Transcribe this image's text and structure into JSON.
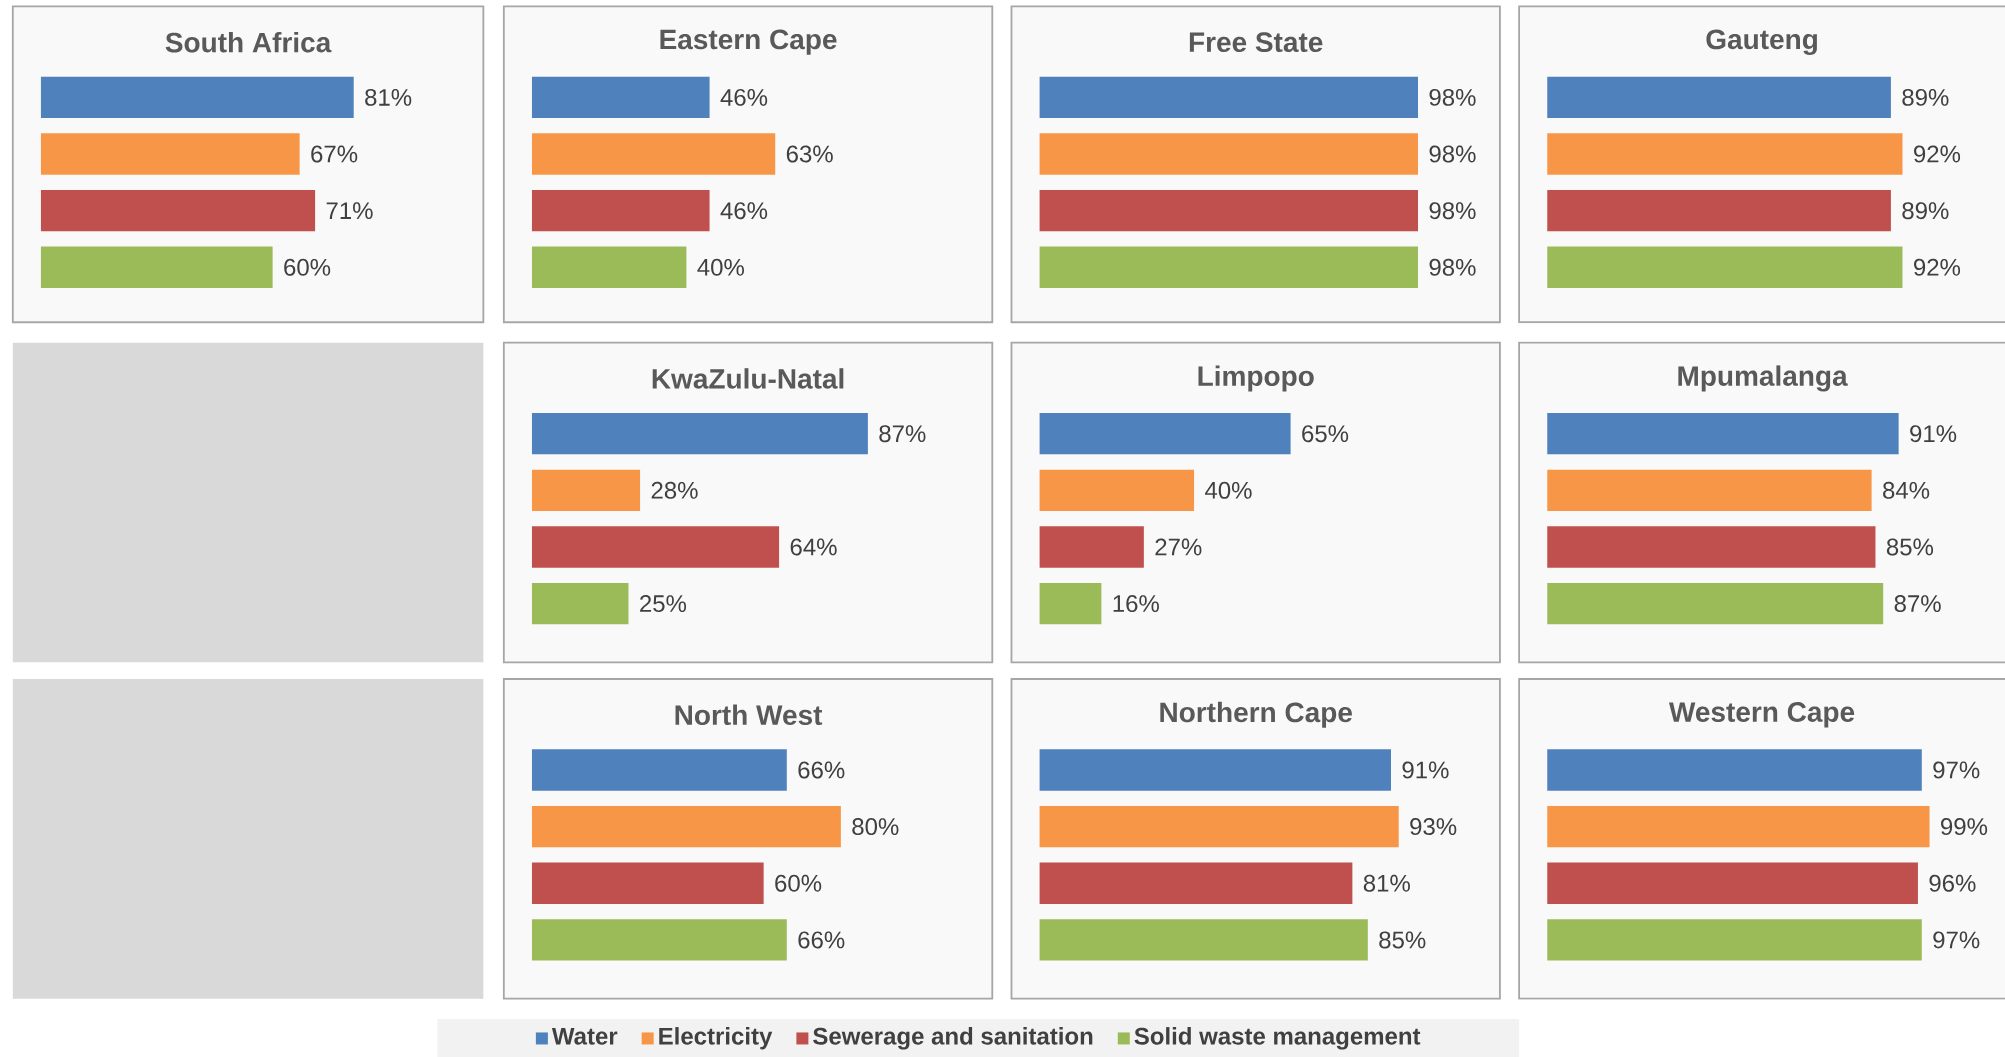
{
  "chart_data": [
    {
      "type": "bar",
      "orientation": "horizontal",
      "title": "South Africa",
      "legend": "bottom",
      "categories": [
        null
      ],
      "series": [
        {
          "name": "Water",
          "color": "#4f81bd",
          "values": [
            81
          ],
          "value_labels": [
            "81%"
          ]
        },
        {
          "name": "Electricity",
          "color": "#f79646",
          "values": [
            67
          ],
          "value_labels": [
            "67%"
          ]
        },
        {
          "name": "Sewerage and sanitation",
          "color": "#c0504d",
          "values": [
            71
          ],
          "value_labels": [
            "71%"
          ]
        },
        {
          "name": "Solid waste management",
          "color": "#9bbb59",
          "values": [
            60
          ],
          "value_labels": [
            "60%"
          ]
        }
      ]
    },
    {
      "type": "bar",
      "orientation": "horizontal",
      "title": "Eastern Cape",
      "categories": [
        null
      ],
      "series": [
        {
          "color": "#4f81bd",
          "values": [
            46
          ],
          "value_labels": [
            "46%"
          ]
        },
        {
          "color": "#f79646",
          "values": [
            63
          ],
          "value_labels": [
            "63%"
          ]
        },
        {
          "color": "#c0504d",
          "values": [
            46
          ],
          "value_labels": [
            "46%"
          ]
        },
        {
          "color": "#9bbb59",
          "values": [
            40
          ],
          "value_labels": [
            "40%"
          ]
        }
      ]
    },
    {
      "type": "bar",
      "orientation": "horizontal",
      "title": "Free State",
      "categories": [
        null
      ],
      "series": [
        {
          "color": "#4f81bd",
          "values": [
            98
          ],
          "value_labels": [
            "98%"
          ]
        },
        {
          "color": "#f79646",
          "values": [
            98
          ],
          "value_labels": [
            "98%"
          ]
        },
        {
          "color": "#c0504d",
          "values": [
            98
          ],
          "value_labels": [
            "98%"
          ]
        },
        {
          "color": "#9bbb59",
          "values": [
            98
          ],
          "value_labels": [
            "98%"
          ]
        }
      ]
    },
    {
      "type": "bar",
      "orientation": "horizontal",
      "title": "Gauteng",
      "categories": [
        null
      ],
      "series": [
        {
          "color": "#4f81bd",
          "values": [
            89
          ],
          "value_labels": [
            "89%"
          ]
        },
        {
          "color": "#f79646",
          "values": [
            92
          ],
          "value_labels": [
            "92%"
          ]
        },
        {
          "color": "#c0504d",
          "values": [
            89
          ],
          "value_labels": [
            "89%"
          ]
        },
        {
          "color": "#9bbb59",
          "values": [
            92
          ],
          "value_labels": [
            "92%"
          ]
        }
      ]
    },
    {
      "type": "bar",
      "orientation": "horizontal",
      "title": "KwaZulu-Natal",
      "categories": [
        null
      ],
      "series": [
        {
          "color": "#4f81bd",
          "values": [
            87
          ],
          "value_labels": [
            "87%"
          ]
        },
        {
          "color": "#f79646",
          "values": [
            28
          ],
          "value_labels": [
            "28%"
          ]
        },
        {
          "color": "#c0504d",
          "values": [
            64
          ],
          "value_labels": [
            "64%"
          ]
        },
        {
          "color": "#9bbb59",
          "values": [
            25
          ],
          "value_labels": [
            "25%"
          ]
        }
      ]
    },
    {
      "type": "bar",
      "orientation": "horizontal",
      "title": "Limpopo",
      "categories": [
        null
      ],
      "series": [
        {
          "color": "#4f81bd",
          "values": [
            65
          ],
          "value_labels": [
            "65%"
          ]
        },
        {
          "color": "#f79646",
          "values": [
            40
          ],
          "value_labels": [
            "40%"
          ]
        },
        {
          "color": "#c0504d",
          "values": [
            27
          ],
          "value_labels": [
            "27%"
          ]
        },
        {
          "color": "#9bbb59",
          "values": [
            16
          ],
          "value_labels": [
            "16%"
          ]
        }
      ]
    },
    {
      "type": "bar",
      "orientation": "horizontal",
      "title": "Mpumalanga",
      "categories": [
        null
      ],
      "series": [
        {
          "color": "#4f81bd",
          "values": [
            91
          ],
          "value_labels": [
            "91%"
          ]
        },
        {
          "color": "#f79646",
          "values": [
            84
          ],
          "value_labels": [
            "84%"
          ]
        },
        {
          "color": "#c0504d",
          "values": [
            85
          ],
          "value_labels": [
            "85%"
          ]
        },
        {
          "color": "#9bbb59",
          "values": [
            87
          ],
          "value_labels": [
            "87%"
          ]
        }
      ]
    },
    {
      "type": "bar",
      "orientation": "horizontal",
      "title": "North West",
      "categories": [
        null
      ],
      "series": [
        {
          "color": "#4f81bd",
          "values": [
            66
          ],
          "value_labels": [
            "66%"
          ]
        },
        {
          "color": "#f79646",
          "values": [
            80
          ],
          "value_labels": [
            "80%"
          ]
        },
        {
          "color": "#c0504d",
          "values": [
            60
          ],
          "value_labels": [
            "60%"
          ]
        },
        {
          "color": "#9bbb59",
          "values": [
            66
          ],
          "value_labels": [
            "66%"
          ]
        }
      ]
    },
    {
      "type": "bar",
      "orientation": "horizontal",
      "title": "Northern Cape",
      "categories": [
        null
      ],
      "series": [
        {
          "color": "#4f81bd",
          "values": [
            91
          ],
          "value_labels": [
            "91%"
          ]
        },
        {
          "color": "#f79646",
          "values": [
            93
          ],
          "value_labels": [
            "93%"
          ]
        },
        {
          "color": "#c0504d",
          "values": [
            81
          ],
          "value_labels": [
            "81%"
          ]
        },
        {
          "color": "#9bbb59",
          "values": [
            85
          ],
          "value_labels": [
            "85%"
          ]
        }
      ]
    },
    {
      "type": "bar",
      "orientation": "horizontal",
      "title": "Western Cape",
      "categories": [
        null
      ],
      "series": [
        {
          "color": "#4f81bd",
          "values": [
            97
          ],
          "value_labels": [
            "97%"
          ]
        },
        {
          "color": "#f79646",
          "values": [
            99
          ],
          "value_labels": [
            "99%"
          ]
        },
        {
          "color": "#c0504d",
          "values": [
            96
          ],
          "value_labels": [
            "96%"
          ]
        },
        {
          "color": "#9bbb59",
          "values": [
            97
          ],
          "value_labels": [
            "97%"
          ]
        }
      ]
    }
  ]
}
